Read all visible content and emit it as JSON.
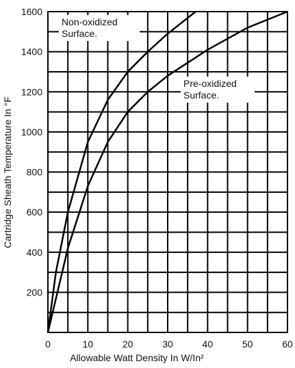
{
  "chart_data": {
    "type": "line",
    "xlabel": "Allowable Watt Density In W/In²",
    "ylabel": "Cartridge Sheath Temperature In °F",
    "series": [
      {
        "name": "Non-oxidized Surface.",
        "color": "#000000",
        "x": [
          0,
          2,
          5,
          10,
          15,
          20,
          25,
          30,
          37
        ],
        "values": [
          0,
          300,
          600,
          950,
          1160,
          1300,
          1400,
          1490,
          1600
        ]
      },
      {
        "name": "Pre-oxidized Surface.",
        "color": "#000000",
        "x": [
          0,
          5,
          10,
          15,
          20,
          25,
          30,
          40,
          50,
          60
        ],
        "values": [
          0,
          420,
          730,
          950,
          1100,
          1200,
          1280,
          1410,
          1520,
          1600
        ]
      }
    ],
    "xlim": [
      0,
      60
    ],
    "xticks": [
      0,
      10,
      20,
      30,
      40,
      50,
      60
    ],
    "ylim": [
      0,
      1600
    ],
    "yticks": [
      200,
      400,
      600,
      800,
      1000,
      1200,
      1400,
      1600
    ],
    "grid": true,
    "minor_grid": true
  }
}
